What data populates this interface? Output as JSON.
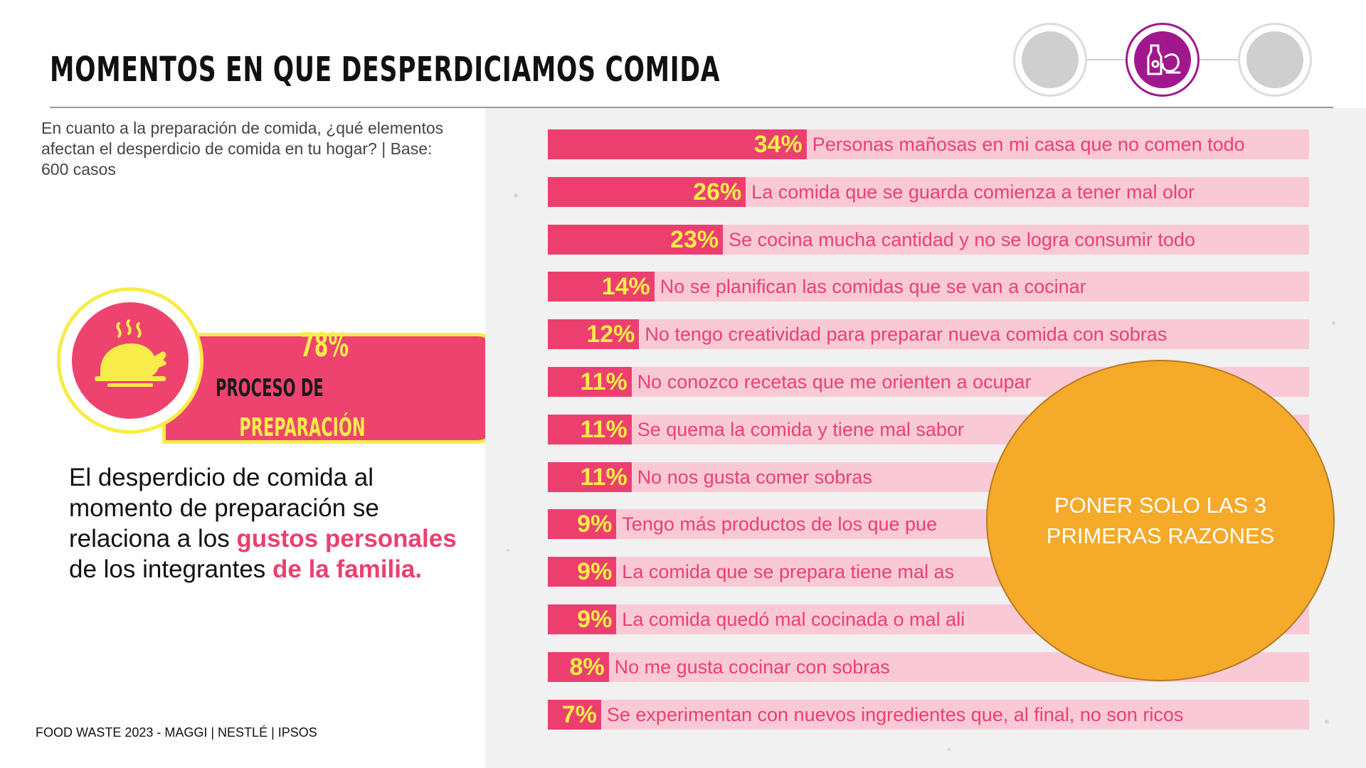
{
  "header": {
    "title": "MOMENTOS EN QUE DESPERDICIAMOS COMIDA",
    "steps": [
      {
        "name": "step-1",
        "active": false
      },
      {
        "name": "step-2",
        "active": true,
        "icon": "food-prep-icon"
      },
      {
        "name": "step-3",
        "active": false
      }
    ]
  },
  "question": "En cuanto a la preparación de comida, ¿qué elementos afectan el desperdicio de comida en tu hogar? | Base: 600 casos",
  "badge": {
    "value": "78%",
    "line1": "PROCESO DE",
    "line2": "PREPARACIÓN",
    "icon": "roast-chicken-icon"
  },
  "insight": {
    "part1": "El desperdicio de comida al momento de preparación se relaciona a los ",
    "highlight1": "gustos personales",
    "part2": " de los integrantes ",
    "highlight2": "de la familia."
  },
  "footer": "FOOD WASTE 2023 - MAGGI | NESTLÉ | IPSOS",
  "sticky_note": "PONER SOLO LAS 3 PRIMERAS RAZONES",
  "colors": {
    "accent_pink": "#ec3f6f",
    "track_pink": "#f9cad6",
    "value_yellow": "#f7ec4a",
    "purple": "#a1178e",
    "sticky_orange": "#f5aa2a"
  },
  "chart_data": {
    "type": "bar",
    "orientation": "horizontal",
    "categories": [
      "Personas mañosas en mi casa que no comen todo",
      "La comida que se guarda comienza a tener mal olor",
      "Se cocina mucha cantidad y no se logra consumir todo",
      "No se planifican las comidas que se van a cocinar",
      "No tengo creatividad para preparar nueva comida con sobras",
      "No conozco recetas que me orienten a ocupar",
      "Se quema la comida y tiene mal sabor",
      "No nos gusta comer sobras",
      "Tengo más productos de los que pue",
      "La comida que se prepara tiene mal as",
      "La comida quedó mal cocinada o mal ali",
      "No me gusta cocinar con sobras",
      "Se experimentan con nuevos ingredientes que, al final, no son ricos"
    ],
    "values": [
      34,
      26,
      23,
      14,
      12,
      11,
      11,
      11,
      9,
      9,
      9,
      8,
      7
    ],
    "value_labels": [
      "34%",
      "26%",
      "23%",
      "14%",
      "12%",
      "11%",
      "11%",
      "11%",
      "9%",
      "9%",
      "9%",
      "8%",
      "7%"
    ],
    "xlim": [
      0,
      100
    ],
    "unit": "%",
    "grid": false,
    "legend": "none"
  }
}
